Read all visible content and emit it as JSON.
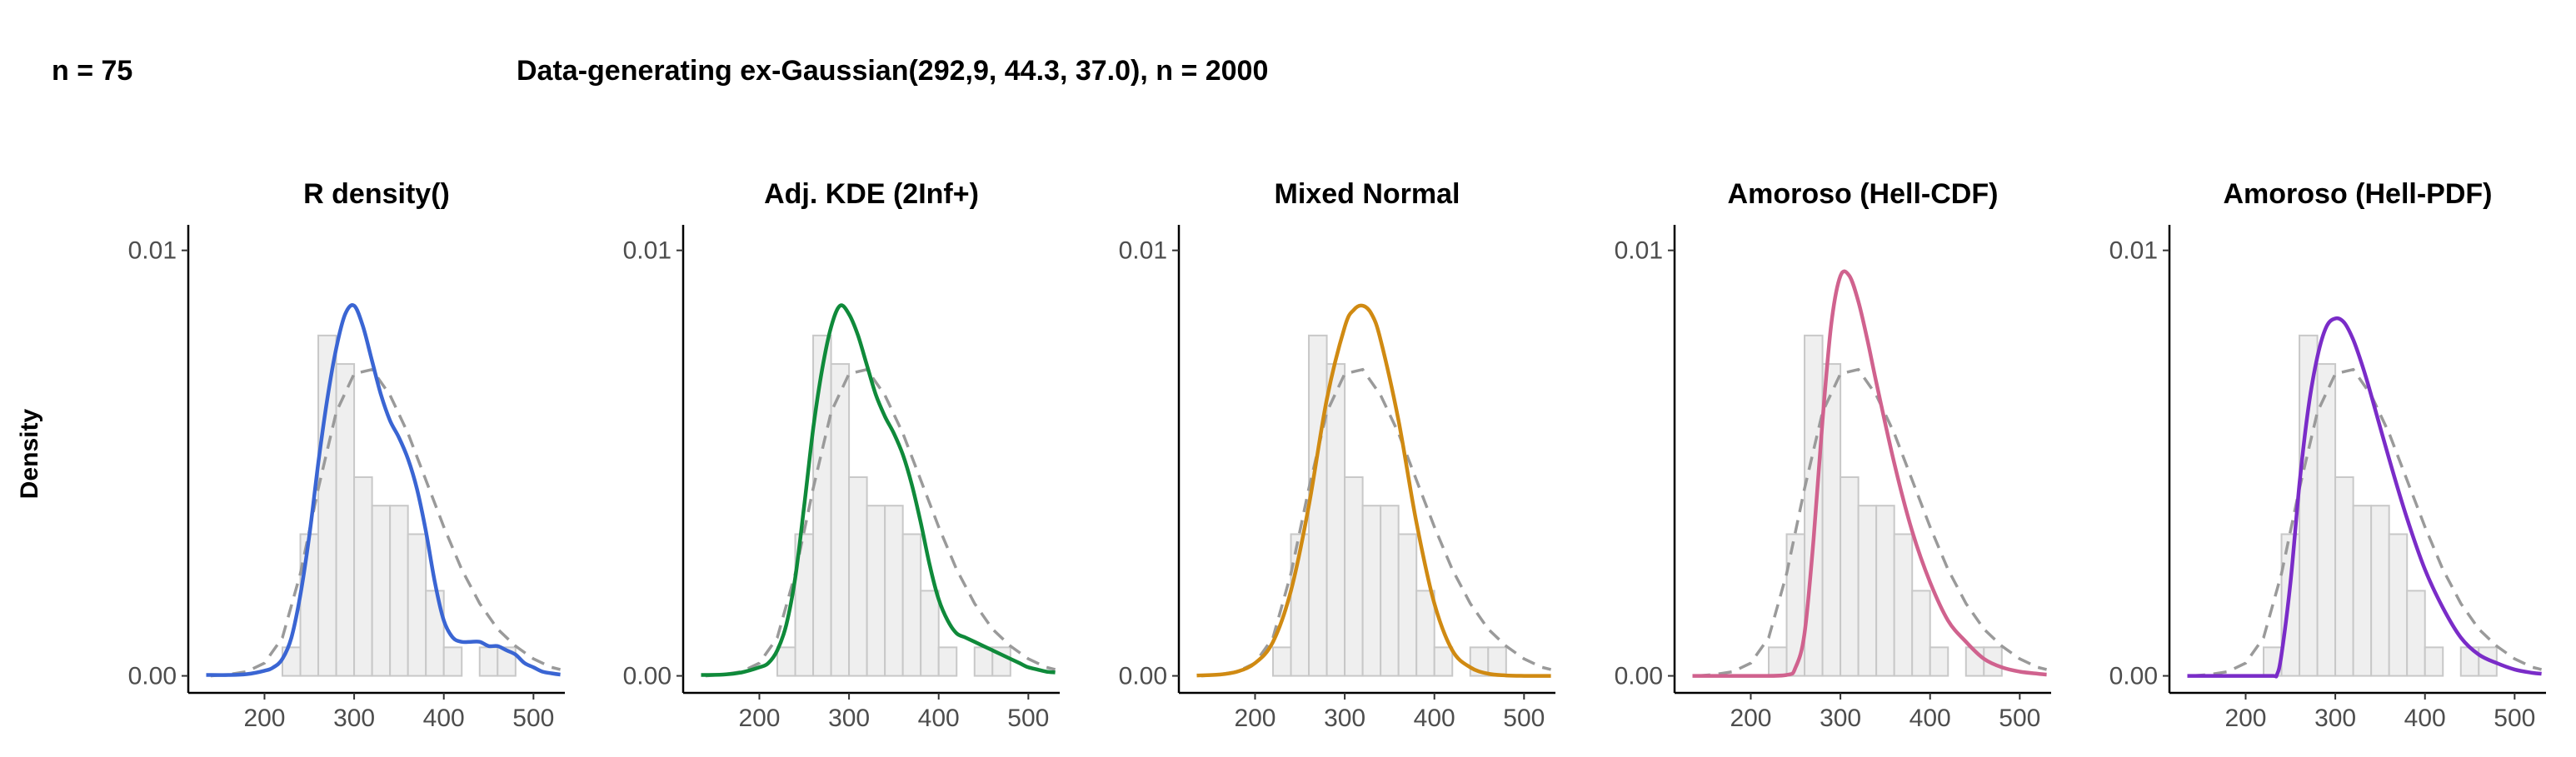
{
  "header": {
    "n_label": "n = 75",
    "title": "Data-generating ex-Gaussian(292,9, 44.3, 37.0), n = 2000"
  },
  "ylabel": "Density",
  "chart_data": {
    "type": "histogram-density-facets",
    "xlim": [
      115,
      535
    ],
    "ylim": [
      -0.0004,
      0.0106
    ],
    "x_ticks": [
      200,
      300,
      400,
      500
    ],
    "y_ticks": [
      0.0,
      0.01
    ],
    "y_tick_labels": [
      "0.00",
      "0.01"
    ],
    "histogram": {
      "bin_width": 20,
      "bins": [
        {
          "x0": 220,
          "density": 0.00067
        },
        {
          "x0": 240,
          "density": 0.00333
        },
        {
          "x0": 260,
          "density": 0.008
        },
        {
          "x0": 280,
          "density": 0.00733
        },
        {
          "x0": 300,
          "density": 0.00467
        },
        {
          "x0": 320,
          "density": 0.004
        },
        {
          "x0": 340,
          "density": 0.004
        },
        {
          "x0": 360,
          "density": 0.00333
        },
        {
          "x0": 380,
          "density": 0.002
        },
        {
          "x0": 400,
          "density": 0.00067
        },
        {
          "x0": 420,
          "density": 0.0
        },
        {
          "x0": 440,
          "density": 0.00067
        },
        {
          "x0": 460,
          "density": 0.00067
        }
      ]
    },
    "true_density": {
      "x": [
        140,
        160,
        180,
        200,
        220,
        240,
        260,
        280,
        300,
        320,
        340,
        360,
        380,
        400,
        420,
        440,
        460,
        480,
        500,
        520,
        530
      ],
      "y": [
        0,
        3e-05,
        0.0001,
        0.0003,
        0.0009,
        0.0024,
        0.0044,
        0.0062,
        0.0071,
        0.0072,
        0.0066,
        0.0057,
        0.0046,
        0.0035,
        0.0025,
        0.0017,
        0.0011,
        0.0007,
        0.0004,
        0.0002,
        0.00015
      ]
    },
    "panels": [
      {
        "title": "R density()",
        "color": "#3a65d3",
        "x": [
          135,
          160,
          180,
          200,
          210,
          220,
          230,
          240,
          250,
          260,
          270,
          280,
          290,
          300,
          310,
          320,
          330,
          340,
          350,
          360,
          370,
          380,
          390,
          400,
          410,
          420,
          430,
          440,
          450,
          460,
          470,
          480,
          490,
          500,
          510,
          520,
          530
        ],
        "y": [
          2e-05,
          2e-05,
          4e-05,
          0.00012,
          0.0002,
          0.0004,
          0.0009,
          0.0019,
          0.0033,
          0.005,
          0.0065,
          0.0077,
          0.0085,
          0.0087,
          0.0082,
          0.0074,
          0.0066,
          0.006,
          0.0056,
          0.0051,
          0.0044,
          0.0034,
          0.0022,
          0.0013,
          0.0009,
          0.0008,
          0.0008,
          0.0008,
          0.0007,
          0.0007,
          0.0006,
          0.0005,
          0.0003,
          0.0002,
          0.0001,
          6e-05,
          3e-05
        ]
      },
      {
        "title": "Adj. KDE (2Inf+)",
        "color": "#0f8a3a",
        "x": [
          135,
          160,
          180,
          200,
          210,
          220,
          230,
          240,
          250,
          260,
          270,
          280,
          290,
          300,
          310,
          320,
          330,
          340,
          350,
          360,
          370,
          380,
          390,
          400,
          410,
          420,
          430,
          440,
          450,
          460,
          470,
          480,
          490,
          500,
          510,
          520,
          530
        ],
        "y": [
          2e-05,
          3e-05,
          8e-05,
          0.0002,
          0.0003,
          0.0006,
          0.0012,
          0.0023,
          0.004,
          0.0058,
          0.0072,
          0.0082,
          0.0087,
          0.0085,
          0.008,
          0.0073,
          0.0066,
          0.0061,
          0.0057,
          0.0052,
          0.0045,
          0.0036,
          0.0026,
          0.0018,
          0.0013,
          0.001,
          0.0009,
          0.0008,
          0.0007,
          0.0006,
          0.0005,
          0.0004,
          0.0003,
          0.0002,
          0.00015,
          0.0001,
          8e-05
        ]
      },
      {
        "title": "Mixed Normal",
        "color": "#d08a12",
        "x": [
          135,
          160,
          180,
          200,
          220,
          240,
          260,
          280,
          300,
          310,
          320,
          330,
          340,
          360,
          380,
          400,
          420,
          440,
          460,
          480,
          500,
          530
        ],
        "y": [
          1e-05,
          3e-05,
          0.0001,
          0.0003,
          0.0008,
          0.002,
          0.004,
          0.0065,
          0.0082,
          0.0086,
          0.0087,
          0.0085,
          0.0079,
          0.006,
          0.0036,
          0.0017,
          0.0006,
          0.0002,
          5e-05,
          1e-05,
          0,
          0
        ]
      },
      {
        "title": "Amoroso (Hell-CDF)",
        "color": "#d0628e",
        "x": [
          135,
          200,
          240,
          250,
          260,
          270,
          280,
          290,
          300,
          310,
          320,
          330,
          340,
          360,
          380,
          400,
          420,
          440,
          460,
          480,
          500,
          520,
          530
        ],
        "y": [
          0,
          0,
          2e-05,
          0.0002,
          0.001,
          0.0032,
          0.006,
          0.0083,
          0.0094,
          0.0094,
          0.0088,
          0.0079,
          0.0069,
          0.005,
          0.0034,
          0.0022,
          0.0013,
          0.0008,
          0.0004,
          0.0002,
          0.0001,
          5e-05,
          3e-05
        ]
      },
      {
        "title": "Amoroso (Hell-PDF)",
        "color": "#7a2cc8",
        "x": [
          135,
          200,
          230,
          235,
          240,
          250,
          260,
          270,
          280,
          290,
          300,
          310,
          320,
          330,
          340,
          360,
          380,
          400,
          420,
          440,
          460,
          480,
          500,
          520,
          530
        ],
        "y": [
          0,
          0,
          0,
          3e-05,
          0.0005,
          0.0022,
          0.0045,
          0.0063,
          0.0075,
          0.0082,
          0.0084,
          0.0083,
          0.0079,
          0.0073,
          0.0066,
          0.0051,
          0.0037,
          0.0025,
          0.0016,
          0.0009,
          0.0005,
          0.0003,
          0.00015,
          7e-05,
          5e-05
        ]
      }
    ]
  }
}
